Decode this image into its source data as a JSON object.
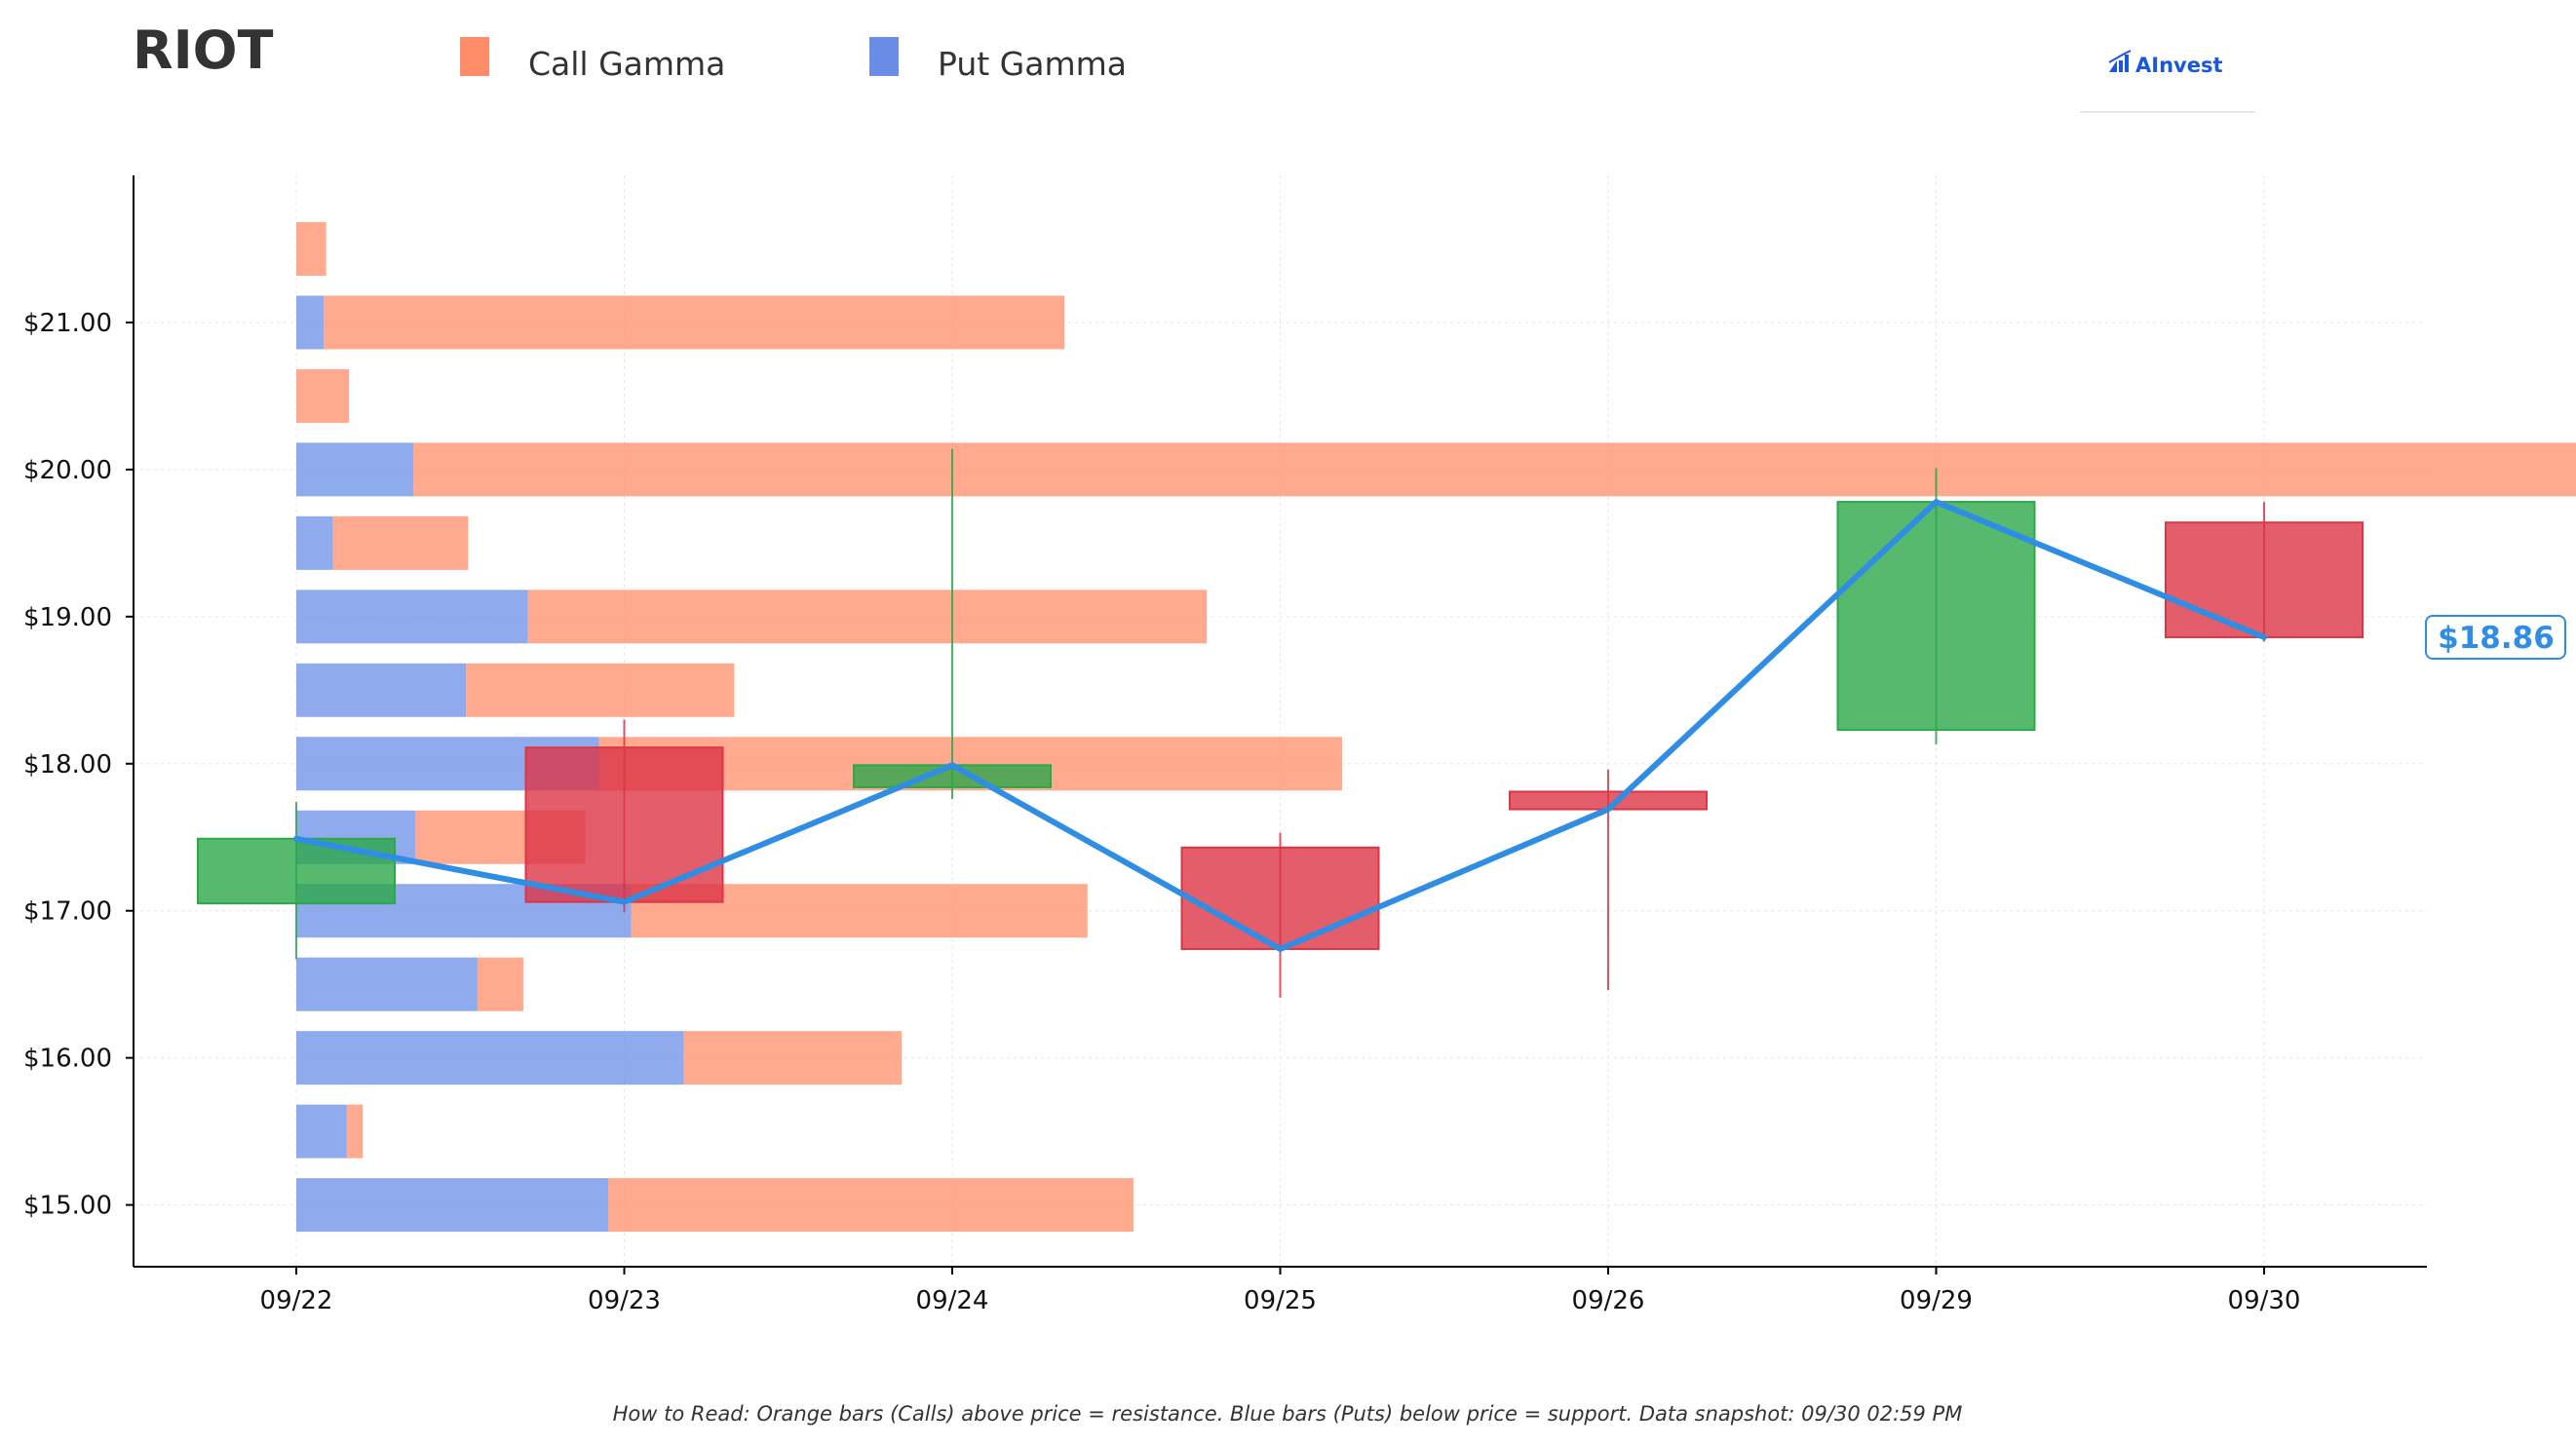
{
  "header": {
    "ticker": "RIOT",
    "brand": "AInvest",
    "brand_icon": "bar-chart-logo-icon"
  },
  "legend": [
    {
      "label": "Call Gamma",
      "color": "#ff8c69"
    },
    {
      "label": "Put Gamma",
      "color": "#6b8de8"
    }
  ],
  "footnote": "How to Read: Orange bars (Calls) above price = resistance. Blue bars (Puts) below price = support. Data snapshot: 09/30 02:59 PM",
  "chart_data": {
    "type": "candlestick",
    "title": "RIOT",
    "xlabel": "",
    "ylabel": "",
    "ylim": [
      14.58,
      22.0
    ],
    "grid": true,
    "legend_position": "top-left",
    "colors": {
      "up": "#2ca84a",
      "down": "#dc3545",
      "close_line": "#2f8de4",
      "call": "#ff8c69",
      "put": "#6b8de8"
    },
    "x_ticks": [
      "09/22",
      "09/23",
      "09/24",
      "09/25",
      "09/26",
      "09/29",
      "09/30"
    ],
    "y_ticks": [
      {
        "value": 15,
        "label": "$15.00"
      },
      {
        "value": 16,
        "label": "$16.00"
      },
      {
        "value": 17,
        "label": "$17.00"
      },
      {
        "value": 18,
        "label": "$18.00"
      },
      {
        "value": 19,
        "label": "$19.00"
      },
      {
        "value": 20,
        "label": "$20.00"
      },
      {
        "value": 21,
        "label": "$21.00"
      }
    ],
    "candles": [
      {
        "date": "09/22",
        "open": 17.05,
        "high": 17.74,
        "low": 16.67,
        "close": 17.49
      },
      {
        "date": "09/23",
        "open": 18.11,
        "high": 18.3,
        "low": 16.99,
        "close": 17.06
      },
      {
        "date": "09/24",
        "open": 17.84,
        "high": 20.14,
        "low": 17.76,
        "close": 17.99
      },
      {
        "date": "09/25",
        "open": 17.43,
        "high": 17.53,
        "low": 16.41,
        "close": 16.74
      },
      {
        "date": "09/26",
        "open": 17.81,
        "high": 17.96,
        "low": 16.46,
        "close": 17.69
      },
      {
        "date": "09/29",
        "open": 18.23,
        "high": 20.01,
        "low": 18.13,
        "close": 19.78
      },
      {
        "date": "09/30",
        "open": 19.64,
        "high": 19.78,
        "low": 18.83,
        "close": 18.86
      }
    ],
    "current_price": {
      "value": 18.86,
      "label": "$18.86"
    },
    "gamma_x_range": [
      0,
      100
    ],
    "gamma_bars": [
      {
        "strike": 21.5,
        "put": 0.0,
        "call": 1.3
      },
      {
        "strike": 21.0,
        "put": 1.2,
        "call": 32.3
      },
      {
        "strike": 20.5,
        "put": 0.0,
        "call": 2.3
      },
      {
        "strike": 20.0,
        "put": 5.1,
        "call": 95.0
      },
      {
        "strike": 19.5,
        "put": 1.6,
        "call": 5.9
      },
      {
        "strike": 19.0,
        "put": 10.1,
        "call": 29.6
      },
      {
        "strike": 18.5,
        "put": 7.4,
        "call": 11.7
      },
      {
        "strike": 18.0,
        "put": 13.2,
        "call": 32.4
      },
      {
        "strike": 17.5,
        "put": 5.2,
        "call": 7.4
      },
      {
        "strike": 17.0,
        "put": 14.6,
        "call": 19.9
      },
      {
        "strike": 16.5,
        "put": 7.9,
        "call": 2.0
      },
      {
        "strike": 16.0,
        "put": 16.9,
        "call": 9.5
      },
      {
        "strike": 15.5,
        "put": 2.2,
        "call": 0.7
      },
      {
        "strike": 15.0,
        "put": 13.6,
        "call": 22.9
      }
    ]
  }
}
